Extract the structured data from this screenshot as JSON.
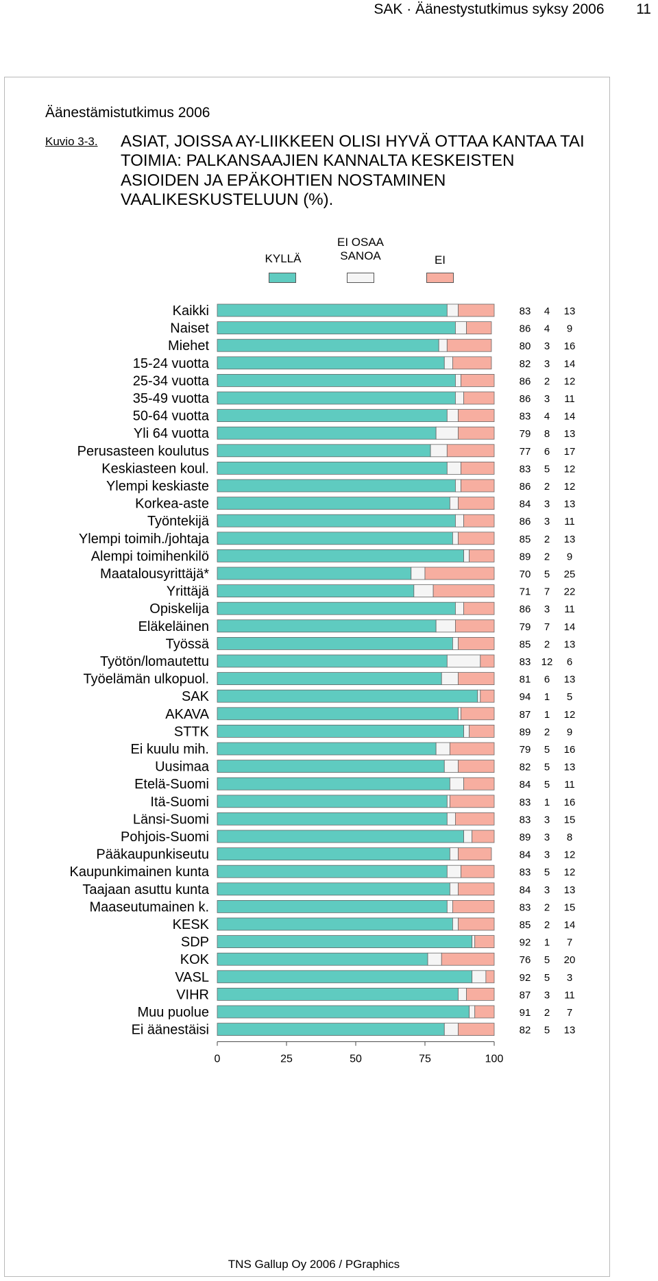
{
  "header": {
    "text": "SAK · Äänestystutkimus syksy 2006",
    "page_number": "11"
  },
  "study_title": "Äänestämistutkimus 2006",
  "figure_label": "Kuvio 3-3.",
  "figure_title": "ASIAT, JOISSA AY-LIIKKEEN OLISI HYVÄ OTTAA KANTAA TAI TOIMIA: PALKANSAAJIEN KANNALTA KESKEISTEN ASIOIDEN JA EPÄKOHTIEN NOSTAMINEN VAALIKESKUSTELUUN (%).",
  "legend": {
    "kylla": "KYLLÄ",
    "ei_osaa_line1": "EI OSAA",
    "ei_osaa_line2": "SANOA",
    "ei": "EI"
  },
  "colors": {
    "kylla": "#5fcbc0",
    "ei_osaa": "#f5f5f5",
    "ei": "#f7aea0"
  },
  "footer": "TNS Gallup Oy  2006 / PGraphics",
  "chart_data": {
    "type": "bar",
    "orientation": "horizontal",
    "stacked": true,
    "xlim": [
      0,
      100
    ],
    "xticks": [
      "0",
      "25",
      "50",
      "75",
      "100"
    ],
    "series_names": [
      "KYLLÄ",
      "EI OSAA SANOA",
      "EI"
    ],
    "groups": [
      {
        "rows": [
          {
            "label": "Kaikki",
            "values": [
              83,
              4,
              13
            ]
          }
        ]
      },
      {
        "rows": [
          {
            "label": "Naiset",
            "values": [
              86,
              4,
              9
            ]
          },
          {
            "label": "Miehet",
            "values": [
              80,
              3,
              16
            ]
          }
        ]
      },
      {
        "rows": [
          {
            "label": "15-24 vuotta",
            "values": [
              82,
              3,
              14
            ]
          },
          {
            "label": "25-34 vuotta",
            "values": [
              86,
              2,
              12
            ]
          },
          {
            "label": "35-49 vuotta",
            "values": [
              86,
              3,
              11
            ]
          },
          {
            "label": "50-64 vuotta",
            "values": [
              83,
              4,
              14
            ]
          },
          {
            "label": "Yli 64 vuotta",
            "values": [
              79,
              8,
              13
            ]
          }
        ]
      },
      {
        "rows": [
          {
            "label": "Perusasteen koulutus",
            "values": [
              77,
              6,
              17
            ]
          },
          {
            "label": "Keskiasteen koul.",
            "values": [
              83,
              5,
              12
            ]
          },
          {
            "label": "Ylempi keskiaste",
            "values": [
              86,
              2,
              12
            ]
          },
          {
            "label": "Korkea-aste",
            "values": [
              84,
              3,
              13
            ]
          }
        ]
      },
      {
        "rows": [
          {
            "label": "Työntekijä",
            "values": [
              86,
              3,
              11
            ]
          },
          {
            "label": "Ylempi toimih./johtaja",
            "values": [
              85,
              2,
              13
            ]
          },
          {
            "label": "Alempi toimihenkilö",
            "values": [
              89,
              2,
              9
            ]
          },
          {
            "label": "Maatalousyrittäjä*",
            "values": [
              70,
              5,
              25
            ]
          },
          {
            "label": "Yrittäjä",
            "values": [
              71,
              7,
              22
            ]
          },
          {
            "label": "Opiskelija",
            "values": [
              86,
              3,
              11
            ]
          },
          {
            "label": "Eläkeläinen",
            "values": [
              79,
              7,
              14
            ]
          }
        ]
      },
      {
        "rows": [
          {
            "label": "Työssä",
            "values": [
              85,
              2,
              13
            ]
          },
          {
            "label": "Työtön/lomautettu",
            "values": [
              83,
              12,
              6
            ]
          },
          {
            "label": "Työelämän ulkopuol.",
            "values": [
              81,
              6,
              13
            ]
          }
        ]
      },
      {
        "rows": [
          {
            "label": "SAK",
            "values": [
              94,
              1,
              5
            ]
          },
          {
            "label": "AKAVA",
            "values": [
              87,
              1,
              12
            ]
          },
          {
            "label": "STTK",
            "values": [
              89,
              2,
              9
            ]
          },
          {
            "label": "Ei kuulu mih.",
            "values": [
              79,
              5,
              16
            ]
          }
        ]
      },
      {
        "rows": [
          {
            "label": "Uusimaa",
            "values": [
              82,
              5,
              13
            ]
          },
          {
            "label": "Etelä-Suomi",
            "values": [
              84,
              5,
              11
            ]
          },
          {
            "label": "Itä-Suomi",
            "values": [
              83,
              1,
              16
            ]
          },
          {
            "label": "Länsi-Suomi",
            "values": [
              83,
              3,
              15
            ]
          },
          {
            "label": "Pohjois-Suomi",
            "values": [
              89,
              3,
              8
            ]
          }
        ]
      },
      {
        "rows": [
          {
            "label": "Pääkaupunkiseutu",
            "values": [
              84,
              3,
              12
            ]
          },
          {
            "label": "Kaupunkimainen kunta",
            "values": [
              83,
              5,
              12
            ]
          },
          {
            "label": "Taajaan asuttu kunta",
            "values": [
              84,
              3,
              13
            ]
          },
          {
            "label": "Maaseutumainen k.",
            "values": [
              83,
              2,
              15
            ]
          }
        ]
      },
      {
        "rows": [
          {
            "label": "KESK",
            "values": [
              85,
              2,
              14
            ]
          },
          {
            "label": "SDP",
            "values": [
              92,
              1,
              7
            ]
          },
          {
            "label": "KOK",
            "values": [
              76,
              5,
              20
            ]
          },
          {
            "label": "VASL",
            "values": [
              92,
              5,
              3
            ]
          },
          {
            "label": "VIHR",
            "values": [
              87,
              3,
              11
            ]
          },
          {
            "label": "Muu puolue",
            "values": [
              91,
              2,
              7
            ]
          },
          {
            "label": "Ei äänestäisi",
            "values": [
              82,
              5,
              13
            ]
          }
        ]
      }
    ]
  }
}
